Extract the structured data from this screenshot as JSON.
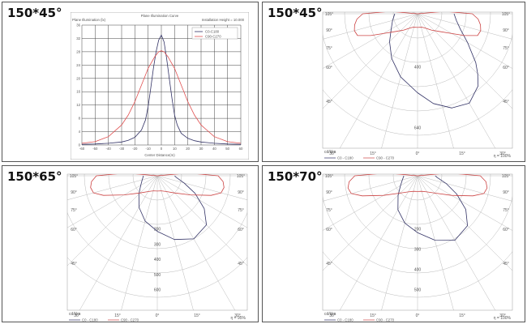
{
  "panels": [
    {
      "title": "150*45°",
      "chart_data": {
        "type": "line",
        "title": "Plane Illumination Curve",
        "ylabel": "Plane Illumination (lx)",
        "xlabel": "Center Distance(m)",
        "annotation": "Installation Height = 10.000",
        "legend": [
          "C0-C180",
          "C90-C270"
        ],
        "legend_position": "top-right",
        "x_ticks": [
          -60,
          -50,
          -40,
          -30,
          -20,
          -10,
          0,
          10,
          20,
          30,
          40,
          50,
          60
        ],
        "y_ticks": [
          0,
          4,
          8,
          12,
          16,
          20,
          24,
          28,
          32,
          36
        ],
        "xlim": [
          -60,
          60
        ],
        "ylim": [
          0,
          36
        ],
        "grid": true,
        "series": [
          {
            "name": "C0-C180",
            "color": "#333366",
            "x": [
              -60,
              -50,
              -40,
              -30,
              -25,
              -20,
              -15,
              -12,
              -10,
              -8,
              -6,
              -4,
              -2,
              0,
              2,
              4,
              6,
              8,
              10,
              12,
              15,
              20,
              25,
              30,
              40,
              50,
              60
            ],
            "y": [
              0.2,
              0.3,
              0.5,
              0.9,
              1.4,
              2.3,
              4.5,
              7.5,
              11.5,
              17,
              23,
              28,
              31.5,
              33,
              31,
              26,
              20,
              14,
              9,
              6,
              3.5,
              2,
              1.3,
              0.9,
              0.5,
              0.3,
              0.2
            ]
          },
          {
            "name": "C90-C270",
            "color": "#e05050",
            "x": [
              -60,
              -50,
              -40,
              -30,
              -25,
              -20,
              -15,
              -10,
              -5,
              -2,
              0,
              2,
              5,
              10,
              15,
              20,
              25,
              30,
              40,
              50,
              60
            ],
            "y": [
              0.5,
              1,
              2.5,
              6,
              9,
              13,
              18,
              23,
              26.5,
              28,
              28.3,
              28,
              26.5,
              23,
              18,
              13,
              9,
              6,
              2.5,
              1,
              0.5
            ]
          }
        ]
      }
    },
    {
      "title": "150*45°",
      "chart_data": {
        "type": "polar",
        "units_label": "cd/klm",
        "efficiency_label": "η = 100%",
        "legend": [
          "C0 - C180",
          "C90 - C270"
        ],
        "legend_position": "bottom-left",
        "angle_labels": [
          "105°",
          "90°",
          "75°",
          "60°",
          "45°",
          "30°",
          "15°",
          "0°",
          "15°",
          "30°",
          "45°",
          "60°",
          "75°",
          "90°",
          "105°"
        ],
        "radial_labels": [
          "400",
          "640"
        ],
        "rmax": 800,
        "series": [
          {
            "name": "C0 - C180",
            "color": "#333366",
            "angles": [
              -90,
              -75,
              -60,
              -45,
              -30,
              -15,
              0,
              10,
              20,
              30,
              40,
              45,
              50,
              60,
              70,
              80,
              90
            ],
            "values": [
              150,
              170,
              200,
              260,
              340,
              430,
              520,
              600,
              660,
              680,
              620,
              560,
              500,
              380,
              300,
              260,
              240
            ]
          },
          {
            "name": "C90 - C270",
            "color": "#cc4444",
            "angles": [
              -105,
              -95,
              -90,
              -85,
              -80,
              -75,
              -70,
              -65,
              -60,
              -50,
              -40,
              -30,
              -20,
              -10,
              0,
              10,
              20,
              30,
              40,
              50,
              60,
              65,
              70,
              75,
              80,
              85,
              90,
              95,
              105
            ],
            "values": [
              0,
              180,
              360,
              400,
              420,
              430,
              420,
              340,
              260,
              180,
              140,
              110,
              95,
              90,
              90,
              90,
              95,
              110,
              140,
              180,
              260,
              340,
              420,
              430,
              420,
              400,
              360,
              180,
              0
            ]
          }
        ]
      }
    },
    {
      "title": "150*65°",
      "chart_data": {
        "type": "polar",
        "units_label": "cd/klm",
        "efficiency_label": "η = 95%",
        "legend": [
          "C0 - C180",
          "C90 - C270"
        ],
        "legend_position": "bottom-left",
        "angle_labels": [
          "105°",
          "90°",
          "75°",
          "60°",
          "45°",
          "30°",
          "15°",
          "0°",
          "15°",
          "30°",
          "45°",
          "60°",
          "75°",
          "90°",
          "105°"
        ],
        "radial_labels": [
          "200",
          "300",
          "400",
          "500",
          "600"
        ],
        "rmax": 700,
        "series": [
          {
            "name": "C0 - C180",
            "color": "#333366",
            "angles": [
              -90,
              -75,
              -60,
              -45,
              -30,
              -15,
              0,
              15,
              30,
              45,
              55,
              65,
              75,
              85,
              90
            ],
            "values": [
              80,
              90,
              110,
              150,
              210,
              270,
              320,
              380,
              420,
              400,
              330,
              240,
              160,
              110,
              100
            ]
          },
          {
            "name": "C90 - C270",
            "color": "#cc4444",
            "angles": [
              -105,
              -95,
              -90,
              -85,
              -80,
              -75,
              -70,
              -60,
              -45,
              -30,
              -15,
              0,
              15,
              30,
              45,
              60,
              70,
              75,
              80,
              85,
              90,
              95,
              105
            ],
            "values": [
              0,
              180,
              350,
              380,
              390,
              380,
              330,
              220,
              140,
              105,
              90,
              88,
              90,
              105,
              140,
              220,
              330,
              380,
              390,
              380,
              350,
              180,
              0
            ]
          }
        ]
      }
    },
    {
      "title": "150*70°",
      "chart_data": {
        "type": "polar",
        "units_label": "cd/klm",
        "efficiency_label": "η = 100%",
        "legend": [
          "C0 - C180",
          "C90 - C270"
        ],
        "legend_position": "bottom-left",
        "angle_labels": [
          "105°",
          "90°",
          "75°",
          "60°",
          "45°",
          "30°",
          "15°",
          "0°",
          "15°",
          "30°",
          "45°",
          "60°",
          "75°",
          "90°",
          "105°"
        ],
        "radial_labels": [
          "200",
          "300",
          "400",
          "500"
        ],
        "rmax": 620,
        "series": [
          {
            "name": "C0 - C180",
            "color": "#333366",
            "angles": [
              -90,
              -75,
              -60,
              -45,
              -30,
              -15,
              0,
              15,
              30,
              45,
              55,
              65,
              75,
              85,
              90
            ],
            "values": [
              70,
              80,
              100,
              140,
              200,
              250,
              290,
              340,
              380,
              360,
              300,
              220,
              150,
              100,
              90
            ]
          },
          {
            "name": "C90 - C270",
            "color": "#cc4444",
            "angles": [
              -105,
              -95,
              -90,
              -85,
              -80,
              -75,
              -70,
              -60,
              -45,
              -30,
              -15,
              0,
              15,
              30,
              45,
              60,
              70,
              75,
              80,
              85,
              90,
              95,
              105
            ],
            "values": [
              0,
              160,
              320,
              350,
              360,
              350,
              300,
              200,
              125,
              95,
              82,
              80,
              82,
              95,
              125,
              200,
              300,
              350,
              360,
              350,
              320,
              160,
              0
            ]
          }
        ]
      }
    }
  ]
}
